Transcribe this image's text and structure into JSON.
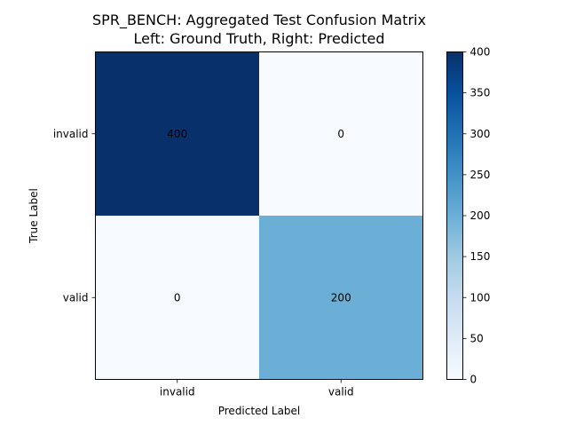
{
  "chart_data": {
    "type": "heatmap",
    "title": "SPR_BENCH: Aggregated Test Confusion Matrix",
    "subtitle": "Left: Ground Truth, Right: Predicted",
    "xlabel": "Predicted Label",
    "ylabel": "True Label",
    "x_categories": [
      "invalid",
      "valid"
    ],
    "y_categories": [
      "invalid",
      "valid"
    ],
    "values": [
      [
        400,
        0
      ],
      [
        0,
        200
      ]
    ],
    "colormap": "Blues",
    "color_range": [
      0,
      400
    ],
    "colorbar_ticks": [
      0,
      50,
      100,
      150,
      200,
      250,
      300,
      350,
      400
    ],
    "grid": false
  }
}
